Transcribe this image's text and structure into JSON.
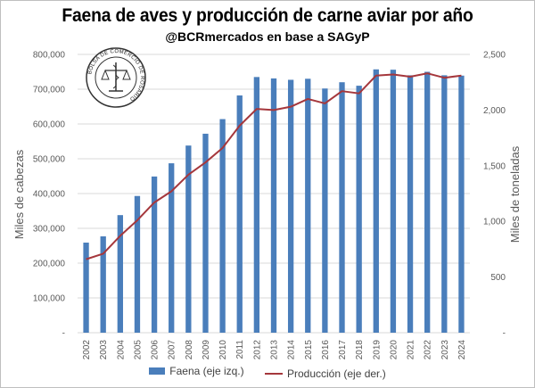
{
  "chart_data": {
    "type": "bar",
    "title": "Faena de aves y producción de carne aviar por año",
    "subtitle": "@BCRmercados en base a SAGyP",
    "categories": [
      "2002",
      "2003",
      "2004",
      "2005",
      "2006",
      "2007",
      "2008",
      "2009",
      "2010",
      "2011",
      "2012",
      "2013",
      "2014",
      "2015",
      "2016",
      "2017",
      "2018",
      "2019",
      "2020",
      "2021",
      "2022",
      "2023",
      "2024"
    ],
    "series": [
      {
        "name": "Faena (eje izq.)",
        "type": "bar",
        "axis": "left",
        "color": "#4a7ebb",
        "values": [
          259000,
          277000,
          338000,
          393000,
          449000,
          487000,
          538000,
          572000,
          614000,
          682000,
          735000,
          731000,
          727000,
          730000,
          702000,
          720000,
          710000,
          757000,
          756000,
          740000,
          750000,
          740000,
          739000
        ]
      },
      {
        "name": "Producción (eje der.)",
        "type": "line",
        "axis": "right",
        "color": "#a5373c",
        "values": [
          660,
          710,
          870,
          1010,
          1170,
          1270,
          1420,
          1530,
          1660,
          1860,
          2010,
          2000,
          2030,
          2100,
          2060,
          2170,
          2150,
          2310,
          2320,
          2300,
          2330,
          2290,
          2310
        ]
      }
    ],
    "ylabel_left": "Miles de cabezas",
    "ylabel_right": "Miles de toneladas",
    "ylim_left": [
      0,
      800000
    ],
    "ylim_right": [
      0,
      2500
    ],
    "yticks_left": [
      "-",
      "100,000",
      "200,000",
      "300,000",
      "400,000",
      "500,000",
      "600,000",
      "700,000",
      "800,000"
    ],
    "yticks_right": [
      "-",
      "500",
      "1,000",
      "1,500",
      "2,000",
      "2,500"
    ],
    "grid": true,
    "legend_position": "bottom"
  },
  "logo": {
    "ring_text": "BOLSA DE COMERCIO DE ROSARIO"
  }
}
